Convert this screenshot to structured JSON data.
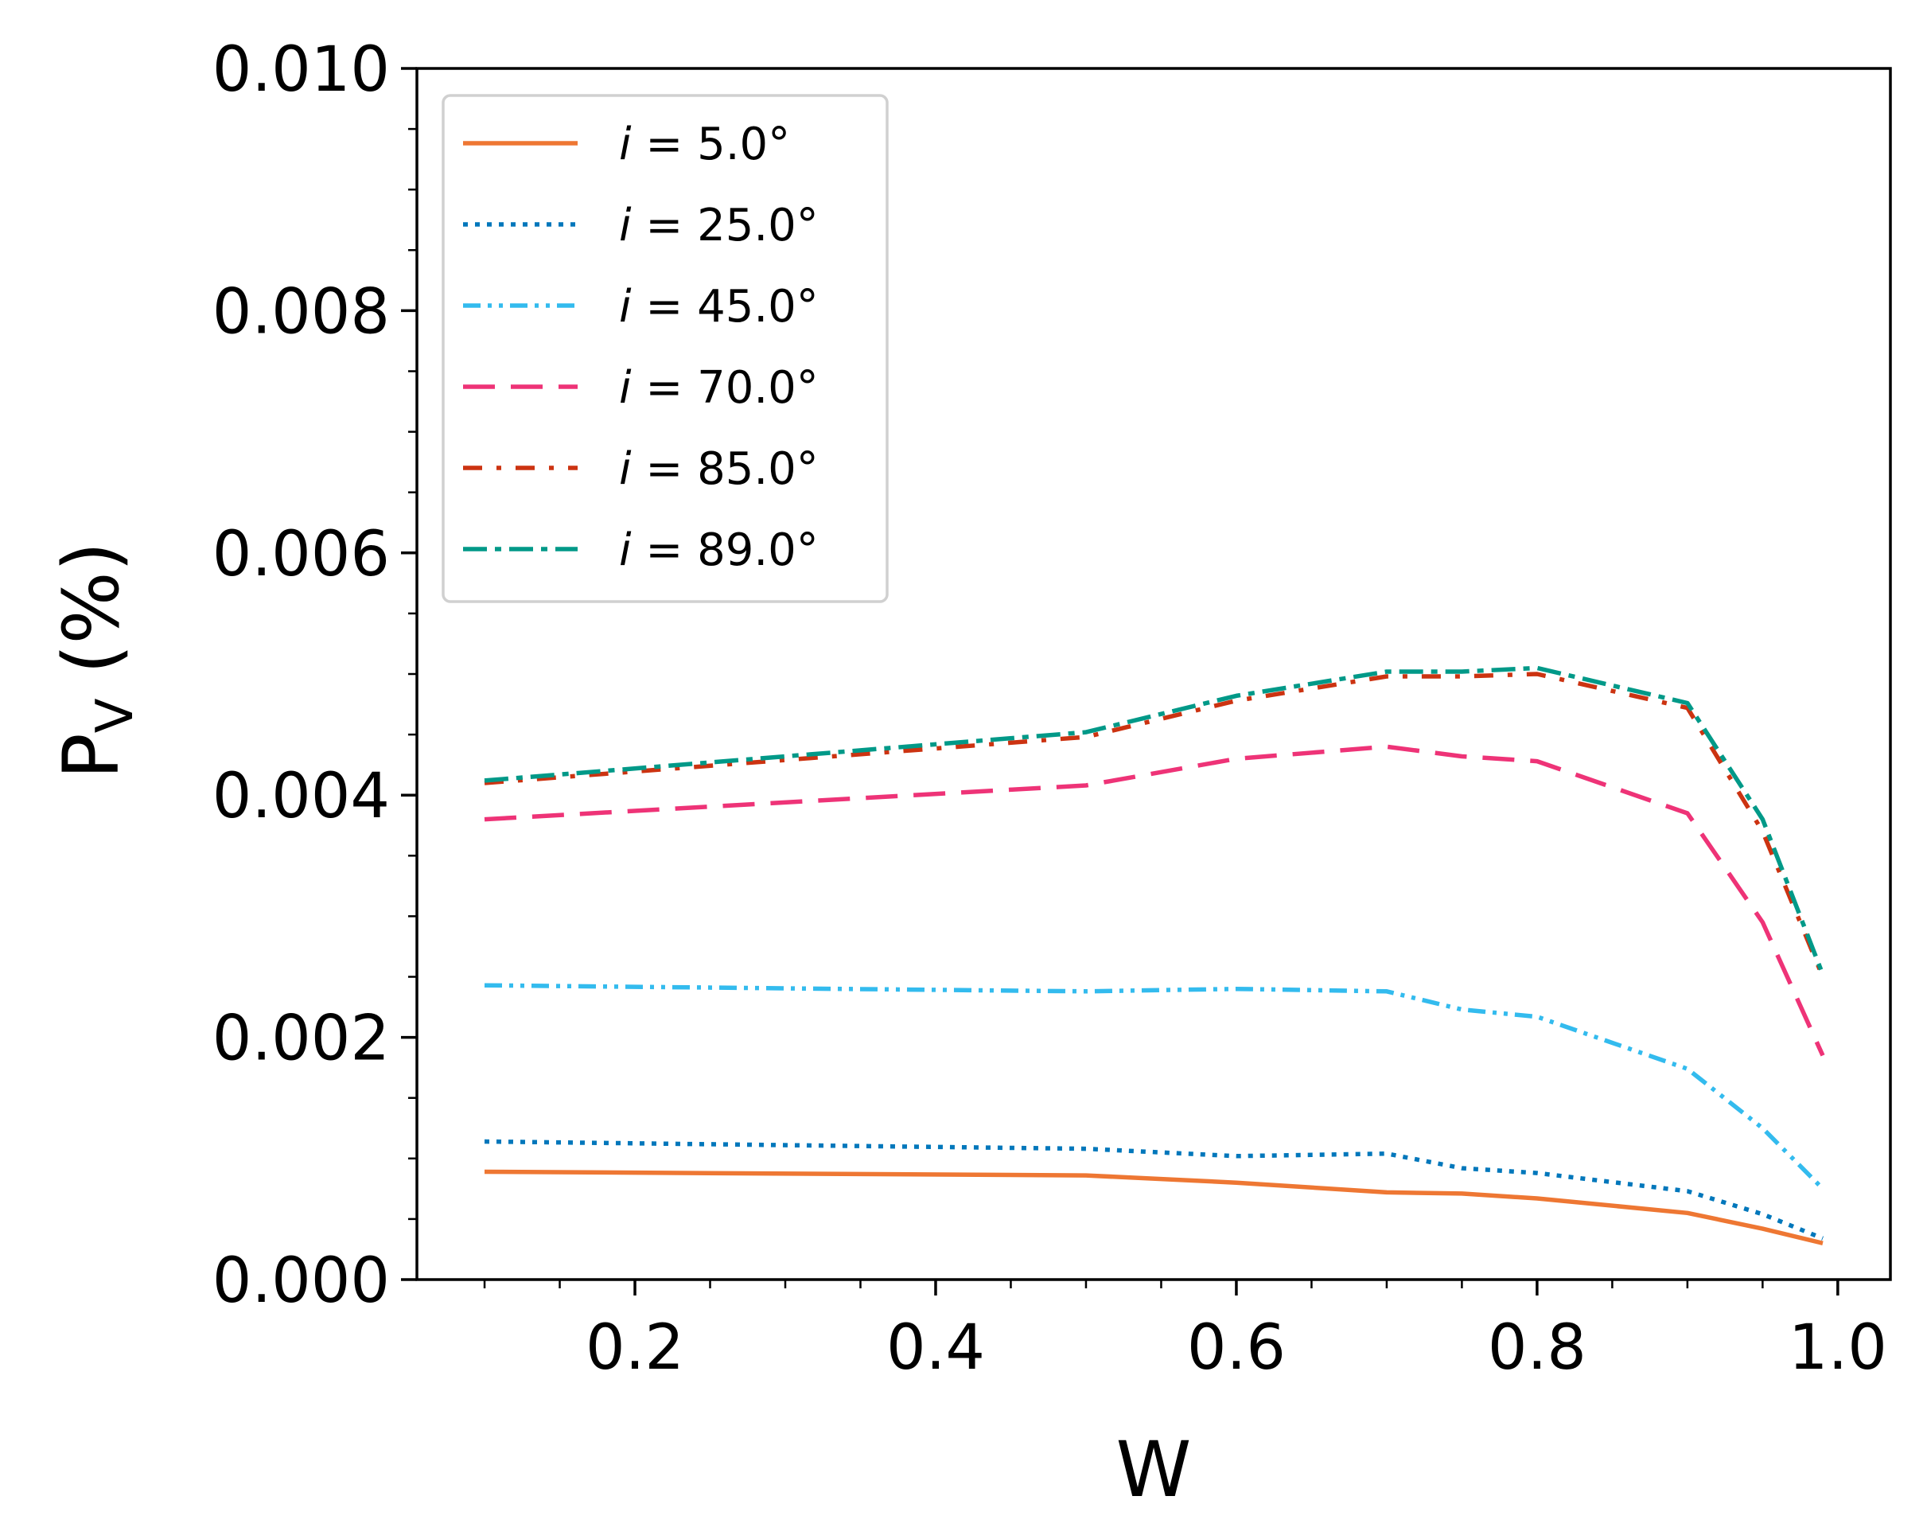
{
  "chart_data": {
    "type": "line",
    "title": "",
    "xlabel": "W",
    "ylabel_main": "P",
    "ylabel_sub": "V",
    "ylabel_unit": " (%)",
    "xlim": [
      0.055,
      1.035
    ],
    "ylim": [
      0.0,
      0.01
    ],
    "grid": false,
    "legend_position": "top-left",
    "x_ticks": [
      0.2,
      0.4,
      0.6,
      0.8,
      1.0
    ],
    "x_tick_labels": [
      "0.2",
      "0.4",
      "0.6",
      "0.8",
      "1.0"
    ],
    "x_minor_ticks": [
      0.1,
      0.15,
      0.25,
      0.3,
      0.35,
      0.45,
      0.5,
      0.55,
      0.65,
      0.7,
      0.75,
      0.85,
      0.9,
      0.95
    ],
    "y_ticks": [
      0.0,
      0.002,
      0.004,
      0.006,
      0.008,
      0.01
    ],
    "y_tick_labels": [
      "0.000",
      "0.002",
      "0.004",
      "0.006",
      "0.008",
      "0.010"
    ],
    "y_minor_ticks": [
      0.0005,
      0.001,
      0.0015,
      0.0025,
      0.003,
      0.0035,
      0.0045,
      0.005,
      0.0055,
      0.0065,
      0.007,
      0.0075,
      0.0085,
      0.009,
      0.0095
    ],
    "x": [
      0.1,
      0.5,
      0.6,
      0.7,
      0.75,
      0.8,
      0.9,
      0.95,
      0.99
    ],
    "series": [
      {
        "name": "i = 5.0°",
        "label_var": "i",
        "label_rest": " = 5.0°",
        "color": "#ee7733",
        "dash": "none",
        "values": [
          0.00089,
          0.00086,
          0.0008,
          0.00072,
          0.00071,
          0.00067,
          0.00055,
          0.00042,
          0.0003
        ]
      },
      {
        "name": "i = 25.0°",
        "label_var": "i",
        "label_rest": " = 25.0°",
        "color": "#0077bb",
        "dash": "dotted",
        "values": [
          0.00114,
          0.00108,
          0.00102,
          0.00104,
          0.00092,
          0.00088,
          0.00073,
          0.00054,
          0.00034
        ]
      },
      {
        "name": "i = 45.0°",
        "label_var": "i",
        "label_rest": " = 45.0°",
        "color": "#33bbee",
        "dash": "dashdotdot",
        "values": [
          0.00243,
          0.00238,
          0.0024,
          0.00238,
          0.00223,
          0.00217,
          0.00174,
          0.00125,
          0.00075
        ]
      },
      {
        "name": "i = 70.0°",
        "label_var": "i",
        "label_rest": " = 70.0°",
        "color": "#ee3377",
        "dash": "longdash",
        "values": [
          0.0038,
          0.00408,
          0.0043,
          0.0044,
          0.00432,
          0.00428,
          0.00385,
          0.00295,
          0.00185
        ]
      },
      {
        "name": "i = 85.0°",
        "label_var": "i",
        "label_rest": " = 85.0°",
        "color": "#cc3311",
        "dash": "dashdot",
        "values": [
          0.0041,
          0.00448,
          0.00478,
          0.00498,
          0.00498,
          0.005,
          0.00472,
          0.0037,
          0.0025
        ]
      },
      {
        "name": "i = 89.0°",
        "label_var": "i",
        "label_rest": " = 89.0°",
        "color": "#009988",
        "dash": "dashdot2",
        "values": [
          0.00412,
          0.00452,
          0.00482,
          0.00502,
          0.00502,
          0.00505,
          0.00476,
          0.0038,
          0.00252
        ]
      }
    ]
  }
}
